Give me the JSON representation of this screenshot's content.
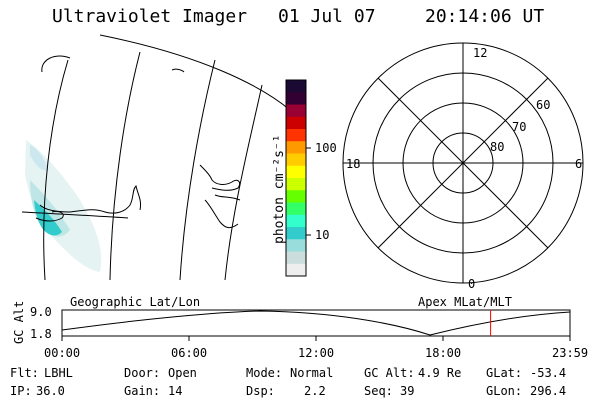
{
  "header": {
    "instrument": "Ultraviolet Imager",
    "date": "01 Jul 07",
    "time": "20:14:06 UT"
  },
  "colorbar": {
    "unit_label": "photon cm⁻²s⁻¹",
    "ticks": [
      "100",
      "10"
    ],
    "colors": [
      "#1a0a33",
      "#330033",
      "#990033",
      "#cc0000",
      "#ff3300",
      "#ff9900",
      "#ffcc00",
      "#ffff00",
      "#ccff00",
      "#66ff00",
      "#33ff66",
      "#33ffcc",
      "#33cccc",
      "#99dddd",
      "#ccdddd",
      "#eeeeee"
    ]
  },
  "polar_plot": {
    "mlt_labels": {
      "top": "12",
      "left": "18",
      "right": "6",
      "bottom": "0"
    },
    "lat_labels": [
      "60",
      "70",
      "80"
    ]
  },
  "timeline": {
    "left_label": "Geographic Lat/Lon",
    "right_label": "Apex MLat/MLT",
    "axis_title": "GC Alt",
    "y_max": "9.0",
    "y_min": "1.8",
    "x_ticks": [
      "00:00",
      "06:00",
      "12:00",
      "18:00",
      "23:59"
    ],
    "current_time_hours": 20.235,
    "marker_color": "#ff0000"
  },
  "footer": {
    "row1": [
      {
        "label": "Flt:",
        "value": "LBHL"
      },
      {
        "label": "Door:",
        "value": "Open"
      },
      {
        "label": "Mode:",
        "value": "Normal"
      },
      {
        "label": "GC Alt:",
        "value": "4.9 Re"
      },
      {
        "label": "GLat:",
        "value": "-53.4"
      }
    ],
    "row2": [
      {
        "label": "IP:",
        "value": "36.0"
      },
      {
        "label": "Gain:",
        "value": "14"
      },
      {
        "label": "Dsp:",
        "value": "2.2"
      },
      {
        "label": "Seq:",
        "value": "39"
      },
      {
        "label": "GLon:",
        "value": "296.4"
      }
    ]
  }
}
